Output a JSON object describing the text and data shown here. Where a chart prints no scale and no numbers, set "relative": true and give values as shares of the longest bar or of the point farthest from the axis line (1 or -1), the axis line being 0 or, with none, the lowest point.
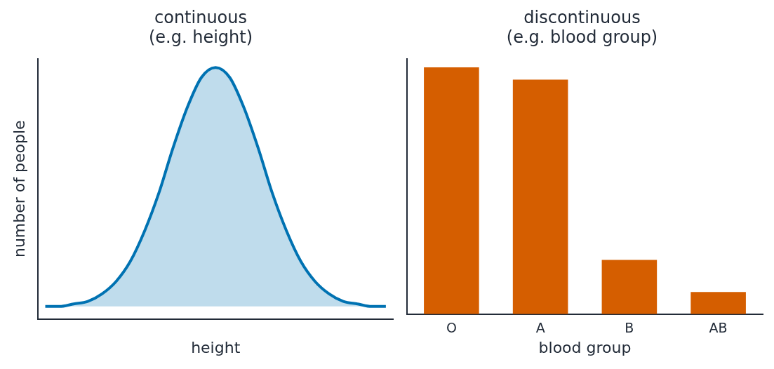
{
  "chart_data": [
    {
      "type": "area",
      "title": "continuous",
      "subtitle": "(e.g. height)",
      "xlabel": "height",
      "ylabel": "number of people",
      "relative": true,
      "categories": [
        null,
        null,
        null,
        null,
        null,
        null,
        null,
        null,
        null,
        null,
        null,
        null,
        null,
        null,
        null,
        null,
        null,
        null,
        null,
        null,
        null,
        null,
        null,
        null,
        null
      ],
      "series": [
        {
          "color": "#0072b2",
          "values": [
            0.05,
            0.05,
            0.06,
            0.07,
            0.1,
            0.15,
            0.23,
            0.35,
            0.5,
            0.68,
            0.84,
            0.96,
            1,
            0.96,
            0.84,
            0.68,
            0.5,
            0.35,
            0.23,
            0.15,
            0.1,
            0.07,
            0.06,
            0.05,
            0.05
          ]
        }
      ]
    },
    {
      "type": "bar",
      "title": "discontinuous",
      "subtitle": "(e.g. blood group)",
      "xlabel": "blood group",
      "relative": true,
      "categories": [
        "O",
        "A",
        "B",
        "AB"
      ],
      "color": "#d55e00",
      "values": [
        1,
        0.95,
        0.22,
        0.09
      ]
    }
  ]
}
